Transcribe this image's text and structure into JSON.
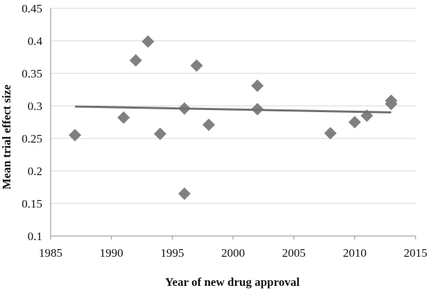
{
  "chart_data": {
    "type": "scatter",
    "title": "",
    "xlabel": "Year of new drug approval",
    "ylabel": "Mean trial effect size",
    "xlim": [
      1985,
      2015
    ],
    "ylim": [
      0.1,
      0.45
    ],
    "x_ticks": [
      1985,
      1990,
      1995,
      2000,
      2005,
      2010,
      2015
    ],
    "x_tick_labels": [
      "1985",
      "1990",
      "1995",
      "2000",
      "2005",
      "2010",
      "2015"
    ],
    "y_ticks": [
      0.1,
      0.15,
      0.2,
      0.25,
      0.3,
      0.35,
      0.4,
      0.45
    ],
    "y_tick_labels": [
      "0.1",
      "0.15",
      "0.2",
      "0.25",
      "0.3",
      "0.35",
      "0.4",
      "0.45"
    ],
    "grid": "horizontal",
    "legend": "none",
    "marker": "diamond",
    "marker_color": "#808080",
    "trend_color": "#707070",
    "points": [
      {
        "x": 1987,
        "y": 0.255
      },
      {
        "x": 1991,
        "y": 0.282
      },
      {
        "x": 1992,
        "y": 0.37
      },
      {
        "x": 1993,
        "y": 0.399
      },
      {
        "x": 1994,
        "y": 0.257
      },
      {
        "x": 1996,
        "y": 0.296
      },
      {
        "x": 1996,
        "y": 0.165
      },
      {
        "x": 1997,
        "y": 0.362
      },
      {
        "x": 1998,
        "y": 0.271
      },
      {
        "x": 2002,
        "y": 0.331
      },
      {
        "x": 2002,
        "y": 0.295
      },
      {
        "x": 2008,
        "y": 0.258
      },
      {
        "x": 2010,
        "y": 0.275
      },
      {
        "x": 2011,
        "y": 0.285
      },
      {
        "x": 2013,
        "y": 0.308
      },
      {
        "x": 2013,
        "y": 0.303
      }
    ],
    "trendline": {
      "type": "linear",
      "x": [
        1987,
        2013
      ],
      "y": [
        0.299,
        0.29
      ]
    }
  }
}
